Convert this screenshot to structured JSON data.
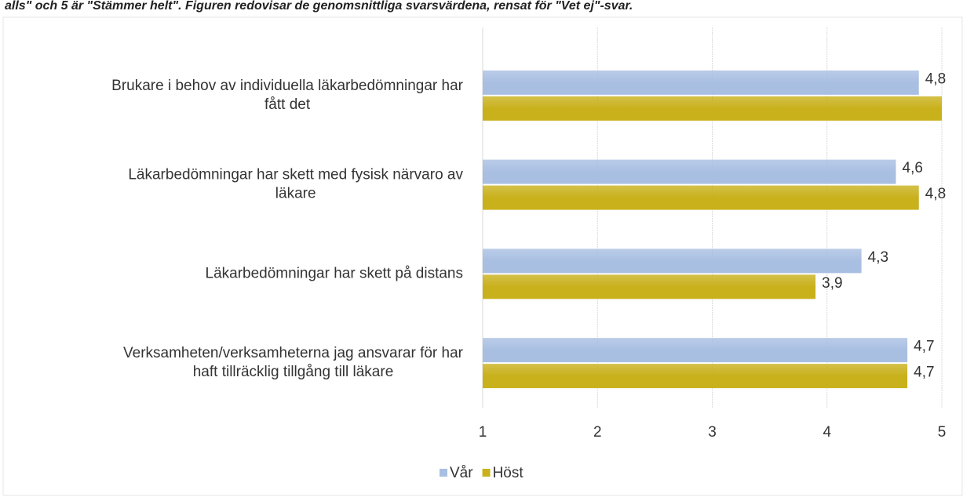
{
  "chart_data": {
    "type": "hbar",
    "subtitle": "alls\" och 5 är \"Stämmer helt\". Figuren redovisar de genomsnittliga svarsvärdena, rensat för \"Vet ej\"-svar.",
    "categories": [
      [
        "Brukare i behov av individuella läkarbedömningar har",
        "fått det"
      ],
      [
        "Läkarbedömningar har skett med fysisk närvaro av",
        "läkare"
      ],
      [
        "Läkarbedömningar har skett på distans"
      ],
      [
        "Verksamheten/verksamheterna jag ansvarar för har",
        "haft tillräcklig tillgång till läkare"
      ]
    ],
    "series": [
      {
        "name": "Vår",
        "color": "#a9bfe2",
        "values": [
          4.8,
          4.6,
          4.3,
          4.7
        ],
        "value_labels": [
          "4,8",
          "4,6",
          "4,3",
          "4,7"
        ]
      },
      {
        "name": "Höst",
        "color": "#c9b11c",
        "values": [
          5.0,
          4.8,
          3.9,
          4.7
        ],
        "value_labels": [
          null,
          "4,8",
          "3,9",
          "4,7"
        ]
      }
    ],
    "xlim": [
      1,
      5
    ],
    "xticks": [
      1,
      2,
      3,
      4,
      5
    ],
    "grid": true,
    "legend": "bottom"
  }
}
